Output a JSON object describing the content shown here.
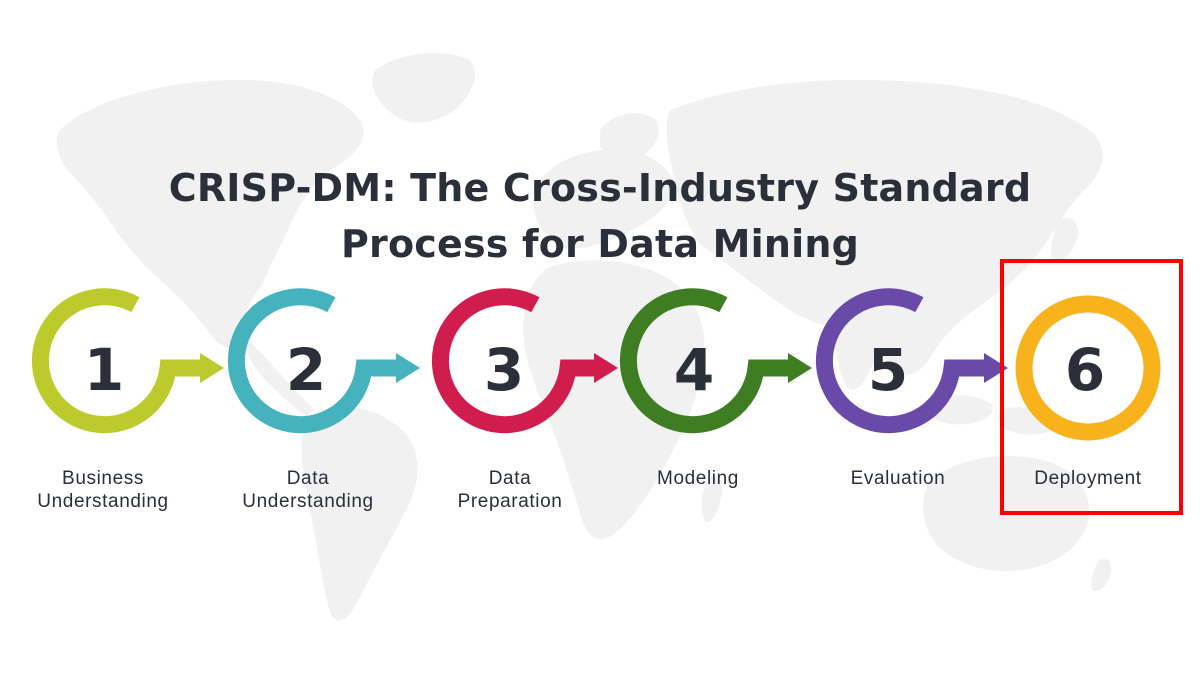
{
  "title": {
    "line1": "CRISP-DM: The Cross-Industry Standard",
    "line2": "Process for Data Mining"
  },
  "steps": [
    {
      "number": "1",
      "label_line1": "Business",
      "label_line2": "Understanding",
      "color": "#bccb2b",
      "icon": "circular-arrow-icon"
    },
    {
      "number": "2",
      "label_line1": "Data",
      "label_line2": "Understanding",
      "color": "#45b3bd",
      "icon": "circular-arrow-icon"
    },
    {
      "number": "3",
      "label_line1": "Data",
      "label_line2": "Preparation",
      "color": "#d11d4e",
      "icon": "circular-arrow-icon"
    },
    {
      "number": "4",
      "label_line1": "Modeling",
      "label_line2": "",
      "color": "#3f7d23",
      "icon": "circular-arrow-icon"
    },
    {
      "number": "5",
      "label_line1": "Evaluation",
      "label_line2": "",
      "color": "#6a4aa8",
      "icon": "circular-arrow-icon"
    },
    {
      "number": "6",
      "label_line1": "Deployment",
      "label_line2": "",
      "color": "#f7b21c",
      "icon": "full-circle-icon"
    }
  ],
  "colors": {
    "text": "#2b2f3a",
    "map": "#f1f1f1",
    "highlight": "#ff0000"
  },
  "highlighted_step": "6"
}
